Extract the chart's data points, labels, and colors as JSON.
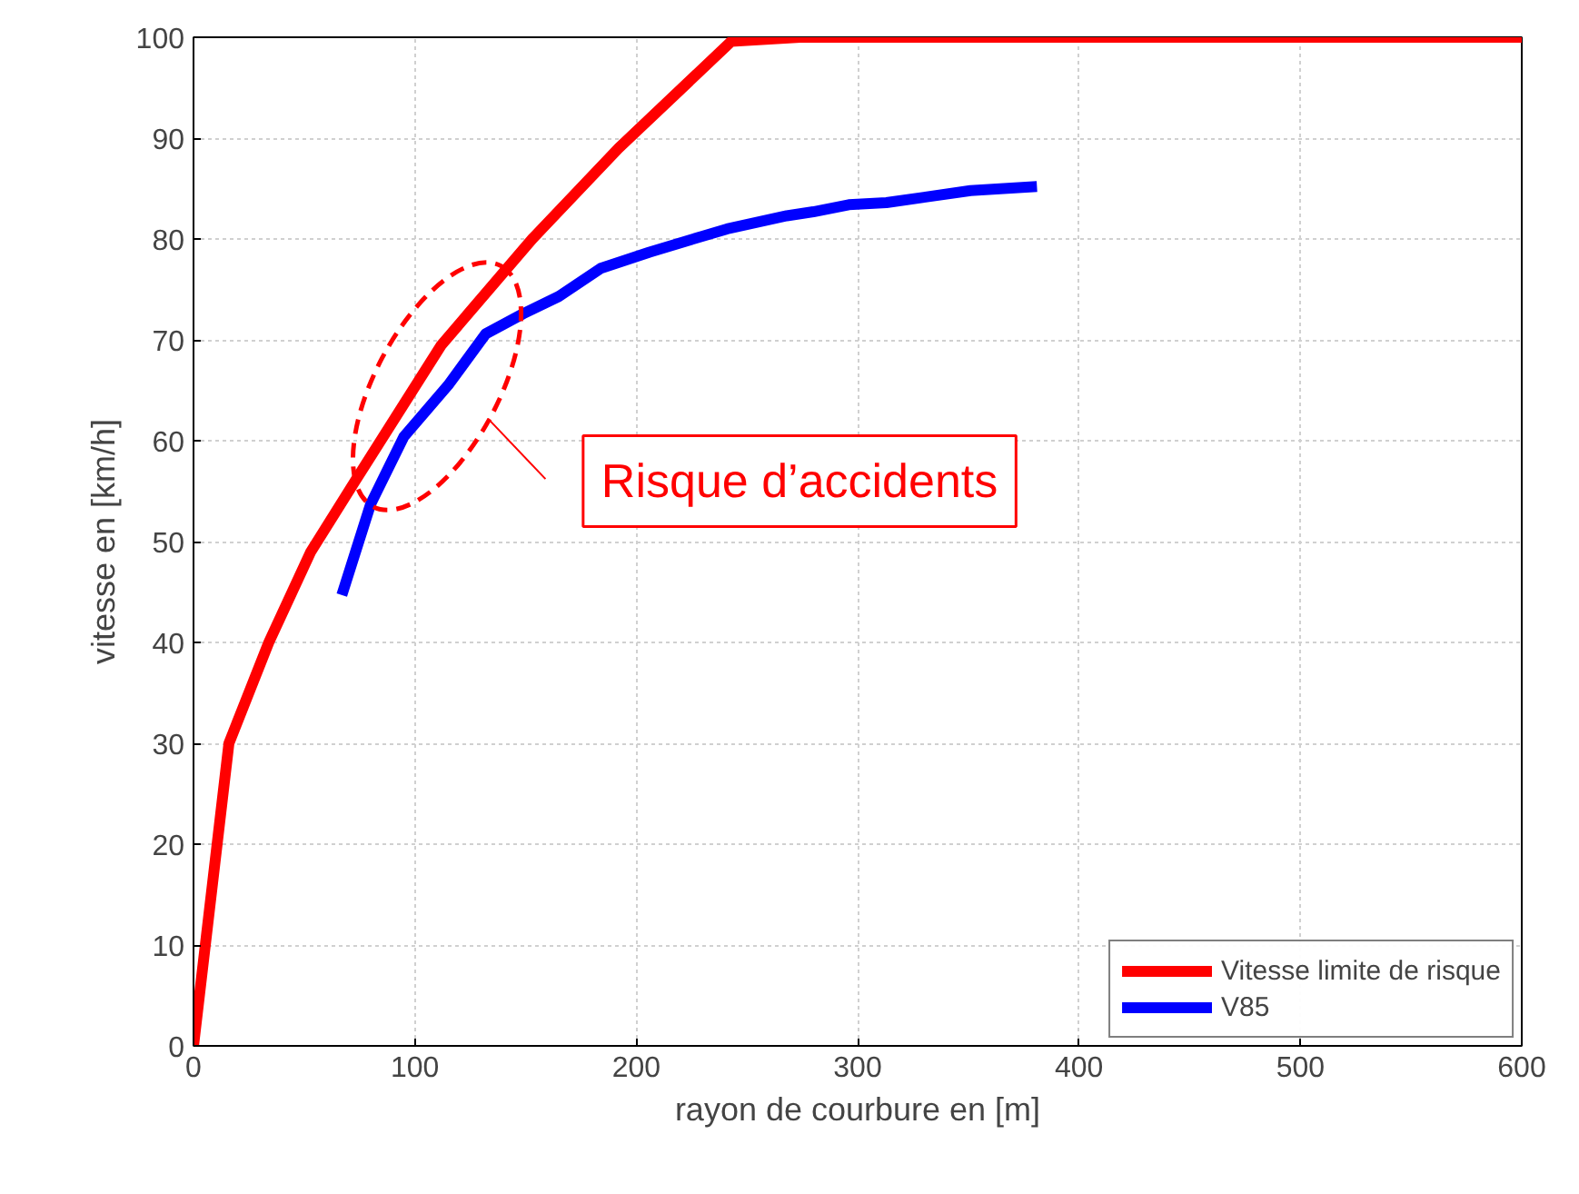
{
  "chart_data": {
    "type": "line",
    "xlabel": "rayon de courbure en [m]",
    "ylabel": "vitesse en [km/h]",
    "xlim": [
      0,
      600
    ],
    "ylim": [
      0,
      100
    ],
    "xticks": [
      0,
      100,
      200,
      300,
      400,
      500,
      600
    ],
    "yticks": [
      0,
      10,
      20,
      30,
      40,
      50,
      60,
      70,
      80,
      90,
      100
    ],
    "grid": true,
    "legend": "bottom right",
    "line_style": "solid",
    "annotations": [
      "Risque d’accidents"
    ],
    "series": [
      {
        "name": "Vitesse limite de risque",
        "color": "#ff0000",
        "x": [
          0,
          16,
          34,
          53,
          73,
          112,
          153,
          192,
          243,
          274,
          600
        ],
        "values": [
          0,
          30,
          40,
          49,
          56,
          69.5,
          80,
          89,
          99.6,
          100,
          100
        ]
      },
      {
        "name": "V85",
        "color": "#0000ff",
        "x": [
          67,
          80,
          95,
          115,
          132,
          149,
          165,
          184,
          206,
          241,
          268,
          280,
          296,
          313,
          351,
          381
        ],
        "values": [
          44.7,
          53.7,
          60.4,
          65.5,
          70.6,
          72.6,
          74.3,
          77.1,
          78.7,
          81,
          82.3,
          82.7,
          83.4,
          83.6,
          84.8,
          85.2
        ]
      }
    ]
  }
}
